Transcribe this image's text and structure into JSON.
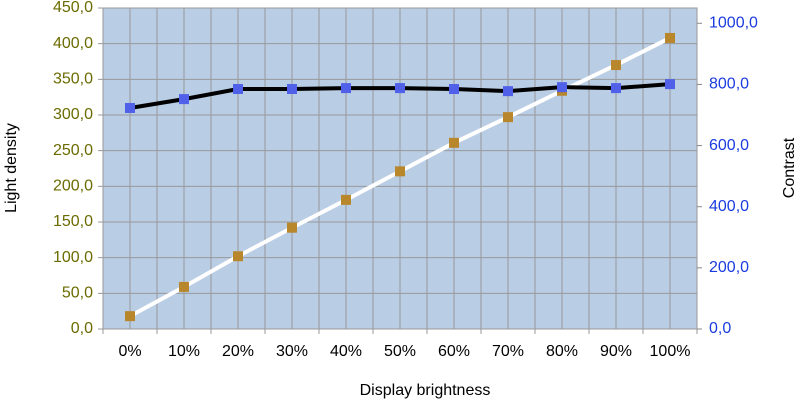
{
  "chart_data": {
    "type": "line",
    "x_label": "Display brightness",
    "y_label": "Light density",
    "y2_label": "Contrast",
    "categories": [
      "0%",
      "10%",
      "20%",
      "30%",
      "40%",
      "50%",
      "60%",
      "70%",
      "80%",
      "90%",
      "100%"
    ],
    "series": [
      {
        "name": "Light density",
        "color": "#b8862b",
        "line_color": "#ffffff",
        "axis": "y",
        "values": [
          18,
          59,
          102,
          142,
          181,
          221,
          261,
          297,
          334,
          370,
          408
        ]
      },
      {
        "name": "Contrast",
        "color": "#5060e8",
        "line_color": "#000000",
        "axis": "y2",
        "values": [
          723,
          752,
          785,
          785,
          788,
          788,
          785,
          778,
          791,
          788,
          801
        ]
      }
    ],
    "ylim": [
      0,
      450
    ],
    "yticks": [
      {
        "value": 0,
        "label": "0,0"
      },
      {
        "value": 50,
        "label": "50,0"
      },
      {
        "value": 100,
        "label": "100,0"
      },
      {
        "value": 150,
        "label": "150,0"
      },
      {
        "value": 200,
        "label": "200,0"
      },
      {
        "value": 250,
        "label": "250,0"
      },
      {
        "value": 300,
        "label": "300,0"
      },
      {
        "value": 350,
        "label": "350,0"
      },
      {
        "value": 400,
        "label": "400,0"
      },
      {
        "value": 450,
        "label": "450,0"
      }
    ],
    "y2lim": [
      0,
      1050
    ],
    "y2ticks": [
      {
        "value": 0,
        "label": "0,0"
      },
      {
        "value": 200,
        "label": "200,0"
      },
      {
        "value": 400,
        "label": "400,0"
      },
      {
        "value": 600,
        "label": "600,0"
      },
      {
        "value": 800,
        "label": "800,0"
      },
      {
        "value": 1000,
        "label": "1000,0"
      }
    ],
    "grid": true,
    "y_tick_color": "#6b6b00",
    "y2_tick_color": "#1a3be0",
    "plot_color": "#b9cde5"
  }
}
